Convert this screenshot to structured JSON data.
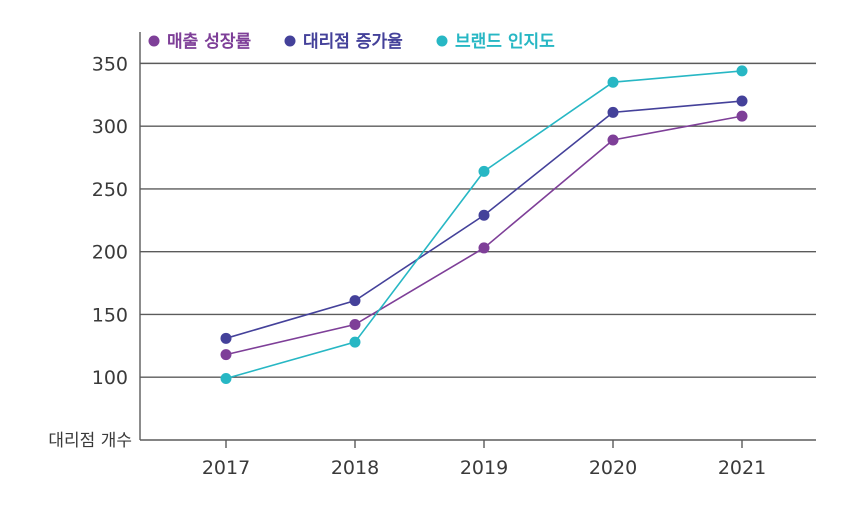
{
  "chart_data": {
    "type": "line",
    "title": "",
    "xlabel": "",
    "ylabel": "대리점 개수",
    "categories": [
      "2017",
      "2018",
      "2019",
      "2020",
      "2021"
    ],
    "ylim": [
      50,
      375
    ],
    "yticks": [
      100,
      150,
      200,
      250,
      300,
      350
    ],
    "grid": "horizontal",
    "legend_position": "top-left",
    "series": [
      {
        "name": "매출 성장률",
        "color": "#7e3f98",
        "values": [
          118,
          142,
          203,
          289,
          308
        ]
      },
      {
        "name": "대리점 증가율",
        "color": "#44419a",
        "values": [
          131,
          161,
          229,
          311,
          320
        ]
      },
      {
        "name": "브랜드 인지도",
        "color": "#27b7c4",
        "values": [
          99,
          128,
          264,
          335,
          344
        ]
      }
    ]
  }
}
